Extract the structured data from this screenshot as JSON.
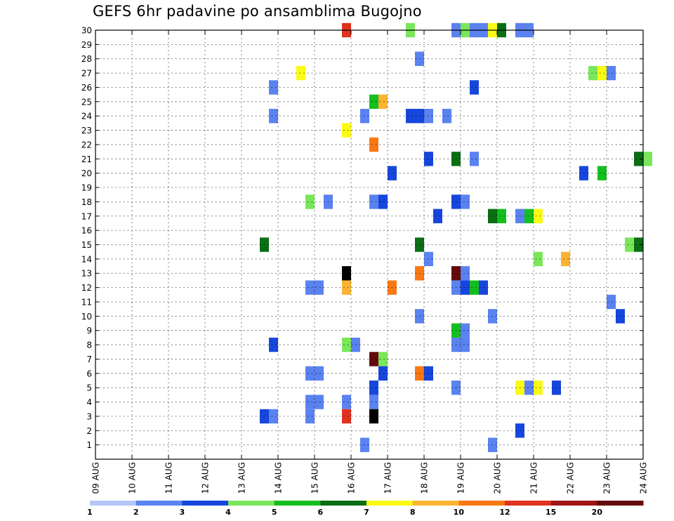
{
  "chart_data": {
    "type": "heatmap",
    "title": "GEFS 6hr padavine po ansamblima Bugojno",
    "x_labels": [
      "09 AUG",
      "10 AUG",
      "11 AUG",
      "12 AUG",
      "13 AUG",
      "14 AUG",
      "15 AUG",
      "16 AUG",
      "17 AUG",
      "18 AUG",
      "19 AUG",
      "20 AUG",
      "21 AUG",
      "22 AUG",
      "23 AUG",
      "24 AUG"
    ],
    "y_labels": [
      "1",
      "2",
      "3",
      "4",
      "5",
      "6",
      "7",
      "8",
      "9",
      "10",
      "11",
      "12",
      "13",
      "14",
      "15",
      "16",
      "17",
      "18",
      "19",
      "20",
      "21",
      "22",
      "23",
      "24",
      "25",
      "26",
      "27",
      "28",
      "29",
      "30"
    ],
    "ylim": [
      0,
      30
    ],
    "x_range_days": [
      0,
      15
    ],
    "grid": true,
    "colorbar": {
      "labels": [
        "1",
        "2",
        "3",
        "4",
        "5",
        "6",
        "7",
        "8",
        "10",
        "12",
        "15",
        "20"
      ],
      "colors": [
        "#b4c6f8",
        "#5a82f0",
        "#1646dc",
        "#7ae65a",
        "#14be1e",
        "#0a6e14",
        "#fafa14",
        "#fab432",
        "#fa7814",
        "#e1321e",
        "#a01414",
        "#640a0a"
      ]
    },
    "cells": [
      {
        "x": 6.75,
        "y": 30,
        "c": 9
      },
      {
        "x": 8.5,
        "y": 30,
        "c": 3
      },
      {
        "x": 9.75,
        "y": 30,
        "c": 1
      },
      {
        "x": 10,
        "y": 30,
        "c": 3
      },
      {
        "x": 10.25,
        "y": 30,
        "c": 1
      },
      {
        "x": 10.5,
        "y": 30,
        "c": 1
      },
      {
        "x": 10.75,
        "y": 30,
        "c": 6
      },
      {
        "x": 11,
        "y": 30,
        "c": 5
      },
      {
        "x": 11.5,
        "y": 30,
        "c": 1
      },
      {
        "x": 11.75,
        "y": 30,
        "c": 1
      },
      {
        "x": 8.75,
        "y": 28,
        "c": 1
      },
      {
        "x": 5.5,
        "y": 27,
        "c": 6
      },
      {
        "x": 13.5,
        "y": 27,
        "c": 3
      },
      {
        "x": 13.75,
        "y": 27,
        "c": 6
      },
      {
        "x": 14,
        "y": 27,
        "c": 1
      },
      {
        "x": 4.75,
        "y": 26,
        "c": 1
      },
      {
        "x": 10.25,
        "y": 26,
        "c": 2
      },
      {
        "x": 7.5,
        "y": 25,
        "c": 4
      },
      {
        "x": 7.75,
        "y": 25,
        "c": 7
      },
      {
        "x": 4.75,
        "y": 24,
        "c": 1
      },
      {
        "x": 7.25,
        "y": 24,
        "c": 1
      },
      {
        "x": 8.5,
        "y": 24,
        "c": 2
      },
      {
        "x": 8.75,
        "y": 24,
        "c": 2
      },
      {
        "x": 9,
        "y": 24,
        "c": 1
      },
      {
        "x": 9.5,
        "y": 24,
        "c": 1
      },
      {
        "x": 6.75,
        "y": 23,
        "c": 6
      },
      {
        "x": 7.5,
        "y": 22,
        "c": 8
      },
      {
        "x": 9,
        "y": 21,
        "c": 2
      },
      {
        "x": 9.75,
        "y": 21,
        "c": 5
      },
      {
        "x": 10.25,
        "y": 21,
        "c": 1
      },
      {
        "x": 14.75,
        "y": 21,
        "c": 5
      },
      {
        "x": 15,
        "y": 21,
        "c": 3
      },
      {
        "x": 8,
        "y": 20,
        "c": 2
      },
      {
        "x": 13.25,
        "y": 20,
        "c": 2
      },
      {
        "x": 13.75,
        "y": 20,
        "c": 4
      },
      {
        "x": 5.75,
        "y": 18,
        "c": 3
      },
      {
        "x": 6.25,
        "y": 18,
        "c": 1
      },
      {
        "x": 7.5,
        "y": 18,
        "c": 1
      },
      {
        "x": 7.75,
        "y": 18,
        "c": 2
      },
      {
        "x": 9.75,
        "y": 18,
        "c": 2
      },
      {
        "x": 10,
        "y": 18,
        "c": 1
      },
      {
        "x": 9.25,
        "y": 17,
        "c": 2
      },
      {
        "x": 10.75,
        "y": 17,
        "c": 5
      },
      {
        "x": 11,
        "y": 17,
        "c": 4
      },
      {
        "x": 11.5,
        "y": 17,
        "c": 1
      },
      {
        "x": 11.75,
        "y": 17,
        "c": 4
      },
      {
        "x": 12,
        "y": 17,
        "c": 6
      },
      {
        "x": 4.5,
        "y": 15,
        "c": 5
      },
      {
        "x": 8.75,
        "y": 15,
        "c": 5
      },
      {
        "x": 14.5,
        "y": 15,
        "c": 3
      },
      {
        "x": 14.75,
        "y": 15,
        "c": 5
      },
      {
        "x": 9,
        "y": 14,
        "c": 1
      },
      {
        "x": 12,
        "y": 14,
        "c": 3
      },
      {
        "x": 12.75,
        "y": 14,
        "c": 7
      },
      {
        "x": 6.75,
        "y": 13,
        "c": 12
      },
      {
        "x": 8.75,
        "y": 13,
        "c": 8
      },
      {
        "x": 9.75,
        "y": 13,
        "c": 11
      },
      {
        "x": 10,
        "y": 13,
        "c": 1
      },
      {
        "x": 5.75,
        "y": 12,
        "c": 1
      },
      {
        "x": 6,
        "y": 12,
        "c": 1
      },
      {
        "x": 6.75,
        "y": 12,
        "c": 7
      },
      {
        "x": 8,
        "y": 12,
        "c": 8
      },
      {
        "x": 9.75,
        "y": 12,
        "c": 1
      },
      {
        "x": 10,
        "y": 12,
        "c": 2
      },
      {
        "x": 10.25,
        "y": 12,
        "c": 4
      },
      {
        "x": 10.5,
        "y": 12,
        "c": 2
      },
      {
        "x": 14,
        "y": 11,
        "c": 1
      },
      {
        "x": 8.75,
        "y": 10,
        "c": 1
      },
      {
        "x": 10.75,
        "y": 10,
        "c": 1
      },
      {
        "x": 14.25,
        "y": 10,
        "c": 2
      },
      {
        "x": 9.75,
        "y": 9,
        "c": 4
      },
      {
        "x": 10,
        "y": 9,
        "c": 1
      },
      {
        "x": 4.75,
        "y": 8,
        "c": 2
      },
      {
        "x": 6.75,
        "y": 8,
        "c": 3
      },
      {
        "x": 7,
        "y": 8,
        "c": 1
      },
      {
        "x": 9.75,
        "y": 8,
        "c": 1
      },
      {
        "x": 10,
        "y": 8,
        "c": 1
      },
      {
        "x": 7.5,
        "y": 7,
        "c": 11
      },
      {
        "x": 7.75,
        "y": 7,
        "c": 3
      },
      {
        "x": 5.75,
        "y": 6,
        "c": 1
      },
      {
        "x": 6,
        "y": 6,
        "c": 1
      },
      {
        "x": 7.75,
        "y": 6,
        "c": 2
      },
      {
        "x": 8.75,
        "y": 6,
        "c": 8
      },
      {
        "x": 9,
        "y": 6,
        "c": 2
      },
      {
        "x": 7.5,
        "y": 5,
        "c": 2
      },
      {
        "x": 9.75,
        "y": 5,
        "c": 1
      },
      {
        "x": 11.5,
        "y": 5,
        "c": 6
      },
      {
        "x": 11.75,
        "y": 5,
        "c": 1
      },
      {
        "x": 12,
        "y": 5,
        "c": 6
      },
      {
        "x": 12.5,
        "y": 5,
        "c": 2
      },
      {
        "x": 5.75,
        "y": 4,
        "c": 1
      },
      {
        "x": 6,
        "y": 4,
        "c": 1
      },
      {
        "x": 6.75,
        "y": 4,
        "c": 1
      },
      {
        "x": 7.5,
        "y": 4,
        "c": 1
      },
      {
        "x": 4.5,
        "y": 3,
        "c": 2
      },
      {
        "x": 4.75,
        "y": 3,
        "c": 1
      },
      {
        "x": 5.75,
        "y": 3,
        "c": 1
      },
      {
        "x": 6.75,
        "y": 3,
        "c": 9
      },
      {
        "x": 7.5,
        "y": 3,
        "c": 12
      },
      {
        "x": 11.5,
        "y": 2,
        "c": 2
      },
      {
        "x": 7.25,
        "y": 1,
        "c": 1
      },
      {
        "x": 10.75,
        "y": 1,
        "c": 1
      }
    ]
  }
}
